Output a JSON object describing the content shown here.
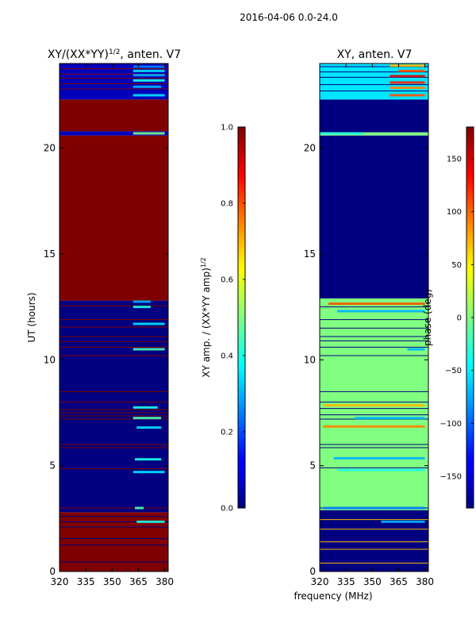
{
  "suptitle": "2016-04-06 0.0-24.0",
  "chart_data": [
    {
      "type": "heatmap",
      "title": "XY/(XX*YY)",
      "title_exponent": "1/2",
      "title_suffix": ", anten. V7",
      "xlabel": "",
      "ylabel": "UT (hours)",
      "xlim": [
        320,
        382
      ],
      "ylim": [
        0,
        24
      ],
      "xticks": [
        320,
        335,
        350,
        365,
        380
      ],
      "yticks": [
        0,
        5,
        10,
        15,
        20
      ],
      "colormap": "jet",
      "colorbar": {
        "label": "XY amp. / (XX*YY amp)",
        "label_exponent": "1/2",
        "range": [
          0.0,
          1.0
        ],
        "ticks": [
          "0.0",
          "0.2",
          "0.4",
          "0.6",
          "0.8",
          "1.0"
        ]
      },
      "bands": [
        {
          "y0": 0.0,
          "y1": 2.8,
          "value": 1.0
        },
        {
          "y0": 2.8,
          "y1": 12.8,
          "value": 0.0
        },
        {
          "y0": 12.8,
          "y1": 20.6,
          "value": 1.0
        },
        {
          "y0": 20.6,
          "y1": 20.8,
          "value": 0.05
        },
        {
          "y0": 20.8,
          "y1": 22.3,
          "value": 1.0
        },
        {
          "y0": 22.3,
          "y1": 24.0,
          "value": 0.05
        }
      ],
      "lines": [
        {
          "y": 0.45,
          "value": 0.0
        },
        {
          "y": 1.25,
          "value": 0.0
        },
        {
          "y": 1.55,
          "value": 0.0
        },
        {
          "y": 2.1,
          "value": 0.0
        },
        {
          "y": 2.35,
          "value": 0.0
        },
        {
          "y": 2.6,
          "value": 0.0
        },
        {
          "y": 3.0,
          "value": 1.0
        },
        {
          "y": 4.85,
          "value": 1.0
        },
        {
          "y": 5.85,
          "value": 1.0
        },
        {
          "y": 6.0,
          "value": 1.0
        },
        {
          "y": 7.2,
          "value": 1.0
        },
        {
          "y": 7.35,
          "value": 1.0
        },
        {
          "y": 7.5,
          "value": 1.0
        },
        {
          "y": 7.65,
          "value": 1.0
        },
        {
          "y": 8.0,
          "value": 1.0
        },
        {
          "y": 8.5,
          "value": 1.0
        },
        {
          "y": 10.2,
          "value": 1.0
        },
        {
          "y": 10.6,
          "value": 1.0
        },
        {
          "y": 10.85,
          "value": 1.0
        },
        {
          "y": 11.1,
          "value": 1.0
        },
        {
          "y": 11.55,
          "value": 1.0
        },
        {
          "y": 11.9,
          "value": 1.0
        },
        {
          "y": 12.55,
          "value": 1.0
        },
        {
          "y": 22.8,
          "value": 1.0
        },
        {
          "y": 23.05,
          "value": 1.0
        },
        {
          "y": 23.3,
          "value": 1.0
        },
        {
          "y": 23.5,
          "value": 1.0
        },
        {
          "y": 23.75,
          "value": 1.0
        }
      ],
      "speckles": [
        {
          "y": 2.35,
          "x0": 364,
          "x1": 380,
          "value": 0.4
        },
        {
          "y": 3.0,
          "x0": 363,
          "x1": 368,
          "value": 0.45
        },
        {
          "y": 4.7,
          "x0": 362,
          "x1": 380,
          "value": 0.35
        },
        {
          "y": 5.3,
          "x0": 363,
          "x1": 378,
          "value": 0.4
        },
        {
          "y": 6.8,
          "x0": 364,
          "x1": 378,
          "value": 0.35
        },
        {
          "y": 7.25,
          "x0": 362,
          "x1": 378,
          "value": 0.45
        },
        {
          "y": 7.75,
          "x0": 362,
          "x1": 376,
          "value": 0.4
        },
        {
          "y": 10.5,
          "x0": 362,
          "x1": 380,
          "value": 0.45
        },
        {
          "y": 11.7,
          "x0": 362,
          "x1": 380,
          "value": 0.35
        },
        {
          "y": 12.5,
          "x0": 362,
          "x1": 372,
          "value": 0.4
        },
        {
          "y": 12.75,
          "x0": 362,
          "x1": 372,
          "value": 0.3
        },
        {
          "y": 20.7,
          "x0": 362,
          "x1": 380,
          "value": 0.5
        },
        {
          "y": 22.5,
          "x0": 362,
          "x1": 380,
          "value": 0.35
        },
        {
          "y": 22.9,
          "x0": 362,
          "x1": 378,
          "value": 0.3
        },
        {
          "y": 23.2,
          "x0": 362,
          "x1": 380,
          "value": 0.4
        },
        {
          "y": 23.45,
          "x0": 362,
          "x1": 380,
          "value": 0.3
        },
        {
          "y": 23.65,
          "x0": 362,
          "x1": 380,
          "value": 0.35
        },
        {
          "y": 23.85,
          "x0": 362,
          "x1": 380,
          "value": 0.25
        }
      ]
    },
    {
      "type": "heatmap",
      "title": "XY, anten. V7",
      "title_exponent": "",
      "title_suffix": "",
      "xlabel": "frequency (MHz)",
      "ylabel": "",
      "xlim": [
        320,
        382
      ],
      "ylim": [
        0,
        24
      ],
      "xticks": [
        320,
        335,
        350,
        365,
        380
      ],
      "yticks": [
        0,
        5,
        10,
        15,
        20
      ],
      "colormap": "jet",
      "colorbar": {
        "label": "phase (deg)",
        "label_exponent": "",
        "range": [
          -180,
          180
        ],
        "ticks": [
          "−150",
          "−100",
          "−50",
          "0",
          "50",
          "100",
          "150"
        ],
        "tick_values": [
          -150,
          -100,
          -50,
          0,
          50,
          100,
          150
        ]
      },
      "bands": [
        {
          "y0": 0.0,
          "y1": 2.9,
          "value": 0.0
        },
        {
          "y0": 2.9,
          "y1": 12.9,
          "value": 0.5
        },
        {
          "y0": 12.9,
          "y1": 20.6,
          "value": 0.0
        },
        {
          "y0": 20.6,
          "y1": 20.75,
          "value": 0.5
        },
        {
          "y0": 20.75,
          "y1": 22.3,
          "value": 0.0
        },
        {
          "y0": 22.3,
          "y1": 24.0,
          "value": 0.35
        }
      ],
      "lines": [
        {
          "y": 0.4,
          "value": 0.7
        },
        {
          "y": 1.05,
          "value": 0.7
        },
        {
          "y": 1.4,
          "value": 0.7
        },
        {
          "y": 2.0,
          "value": 0.7
        },
        {
          "y": 2.45,
          "value": 0.7
        },
        {
          "y": 3.0,
          "value": 0.0
        },
        {
          "y": 4.9,
          "value": 0.0
        },
        {
          "y": 5.85,
          "value": 0.0
        },
        {
          "y": 6.0,
          "value": 0.0
        },
        {
          "y": 7.2,
          "value": 0.0
        },
        {
          "y": 7.4,
          "value": 0.0
        },
        {
          "y": 7.7,
          "value": 0.0
        },
        {
          "y": 8.0,
          "value": 0.0
        },
        {
          "y": 8.5,
          "value": 0.0
        },
        {
          "y": 10.2,
          "value": 0.0
        },
        {
          "y": 10.6,
          "value": 0.0
        },
        {
          "y": 10.9,
          "value": 0.0
        },
        {
          "y": 11.1,
          "value": 0.0
        },
        {
          "y": 11.5,
          "value": 0.0
        },
        {
          "y": 11.9,
          "value": 0.0
        },
        {
          "y": 12.5,
          "value": 0.0
        },
        {
          "y": 22.7,
          "value": 0.0
        },
        {
          "y": 23.0,
          "value": 0.0
        },
        {
          "y": 23.35,
          "value": 0.0
        },
        {
          "y": 23.6,
          "value": 0.0
        },
        {
          "y": 23.85,
          "value": 0.0
        }
      ],
      "speckles": [
        {
          "y": 2.35,
          "x0": 355,
          "x1": 380,
          "value": 0.3
        },
        {
          "y": 3.0,
          "x0": 322,
          "x1": 380,
          "value": 0.25
        },
        {
          "y": 4.8,
          "x0": 330,
          "x1": 380,
          "value": 0.4
        },
        {
          "y": 5.35,
          "x0": 328,
          "x1": 380,
          "value": 0.3
        },
        {
          "y": 6.85,
          "x0": 322,
          "x1": 380,
          "value": 0.75
        },
        {
          "y": 7.25,
          "x0": 340,
          "x1": 380,
          "value": 0.3
        },
        {
          "y": 7.85,
          "x0": 322,
          "x1": 380,
          "value": 0.7
        },
        {
          "y": 10.5,
          "x0": 370,
          "x1": 380,
          "value": 0.3
        },
        {
          "y": 12.3,
          "x0": 330,
          "x1": 380,
          "value": 0.3
        },
        {
          "y": 12.65,
          "x0": 325,
          "x1": 380,
          "value": 0.8
        },
        {
          "y": 20.7,
          "x0": 320,
          "x1": 345,
          "value": 0.4
        },
        {
          "y": 22.5,
          "x0": 360,
          "x1": 380,
          "value": 0.8
        },
        {
          "y": 22.85,
          "x0": 360,
          "x1": 380,
          "value": 0.75
        },
        {
          "y": 23.1,
          "x0": 360,
          "x1": 380,
          "value": 0.85
        },
        {
          "y": 23.4,
          "x0": 360,
          "x1": 380,
          "value": 0.9
        },
        {
          "y": 23.65,
          "x0": 365,
          "x1": 380,
          "value": 0.8
        },
        {
          "y": 23.9,
          "x0": 360,
          "x1": 380,
          "value": 0.7
        }
      ]
    }
  ]
}
